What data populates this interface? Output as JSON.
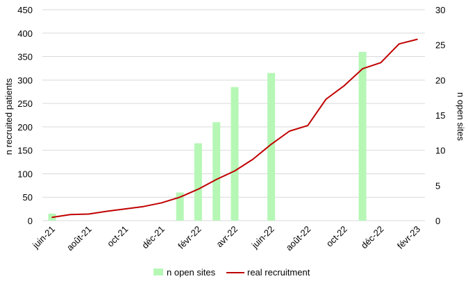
{
  "chart_data": {
    "type": "bar+line",
    "x_tick_labels": [
      "juin-21",
      "août-21",
      "oct-21",
      "déc-21",
      "févr-22",
      "avr-22",
      "juin-22",
      "août-22",
      "oct-22",
      "déc-22",
      "févr-23"
    ],
    "ylabel": "n recruited patients",
    "ylabel_right": "n open sites",
    "ylim": [
      0,
      450
    ],
    "ylim_right": [
      0,
      30
    ],
    "y_ticks": [
      0,
      50,
      100,
      150,
      200,
      250,
      300,
      350,
      400,
      450
    ],
    "y_ticks_right": [
      0,
      5,
      10,
      15,
      20,
      25,
      30
    ],
    "grid": "horizontal",
    "legend_position": "bottom",
    "series": [
      {
        "name": "n open sites",
        "type": "bar",
        "axis": "right",
        "color": "#b6f7b6",
        "points": [
          {
            "x": "2021-06",
            "y": 1
          },
          {
            "x": "2022-01",
            "y": 4
          },
          {
            "x": "2022-02",
            "y": 11
          },
          {
            "x": "2022-03",
            "y": 14
          },
          {
            "x": "2022-04",
            "y": 19
          },
          {
            "x": "2022-06",
            "y": 21
          },
          {
            "x": "2022-11",
            "y": 24
          }
        ]
      },
      {
        "name": "real recruitment",
        "type": "line",
        "axis": "left",
        "color": "#c00000",
        "points": [
          {
            "x": "2021-06",
            "y": 7
          },
          {
            "x": "2021-07",
            "y": 13
          },
          {
            "x": "2021-08",
            "y": 14
          },
          {
            "x": "2021-09",
            "y": 20
          },
          {
            "x": "2021-10",
            "y": 25
          },
          {
            "x": "2021-11",
            "y": 30
          },
          {
            "x": "2021-12",
            "y": 38
          },
          {
            "x": "2022-01",
            "y": 50
          },
          {
            "x": "2022-02",
            "y": 67
          },
          {
            "x": "2022-03",
            "y": 88
          },
          {
            "x": "2022-04",
            "y": 106
          },
          {
            "x": "2022-05",
            "y": 131
          },
          {
            "x": "2022-06",
            "y": 163
          },
          {
            "x": "2022-07",
            "y": 191
          },
          {
            "x": "2022-08",
            "y": 203
          },
          {
            "x": "2022-09",
            "y": 259
          },
          {
            "x": "2022-10",
            "y": 288
          },
          {
            "x": "2022-11",
            "y": 324
          },
          {
            "x": "2022-12",
            "y": 337
          },
          {
            "x": "2023-01",
            "y": 377
          },
          {
            "x": "2023-02",
            "y": 387
          }
        ]
      }
    ]
  }
}
